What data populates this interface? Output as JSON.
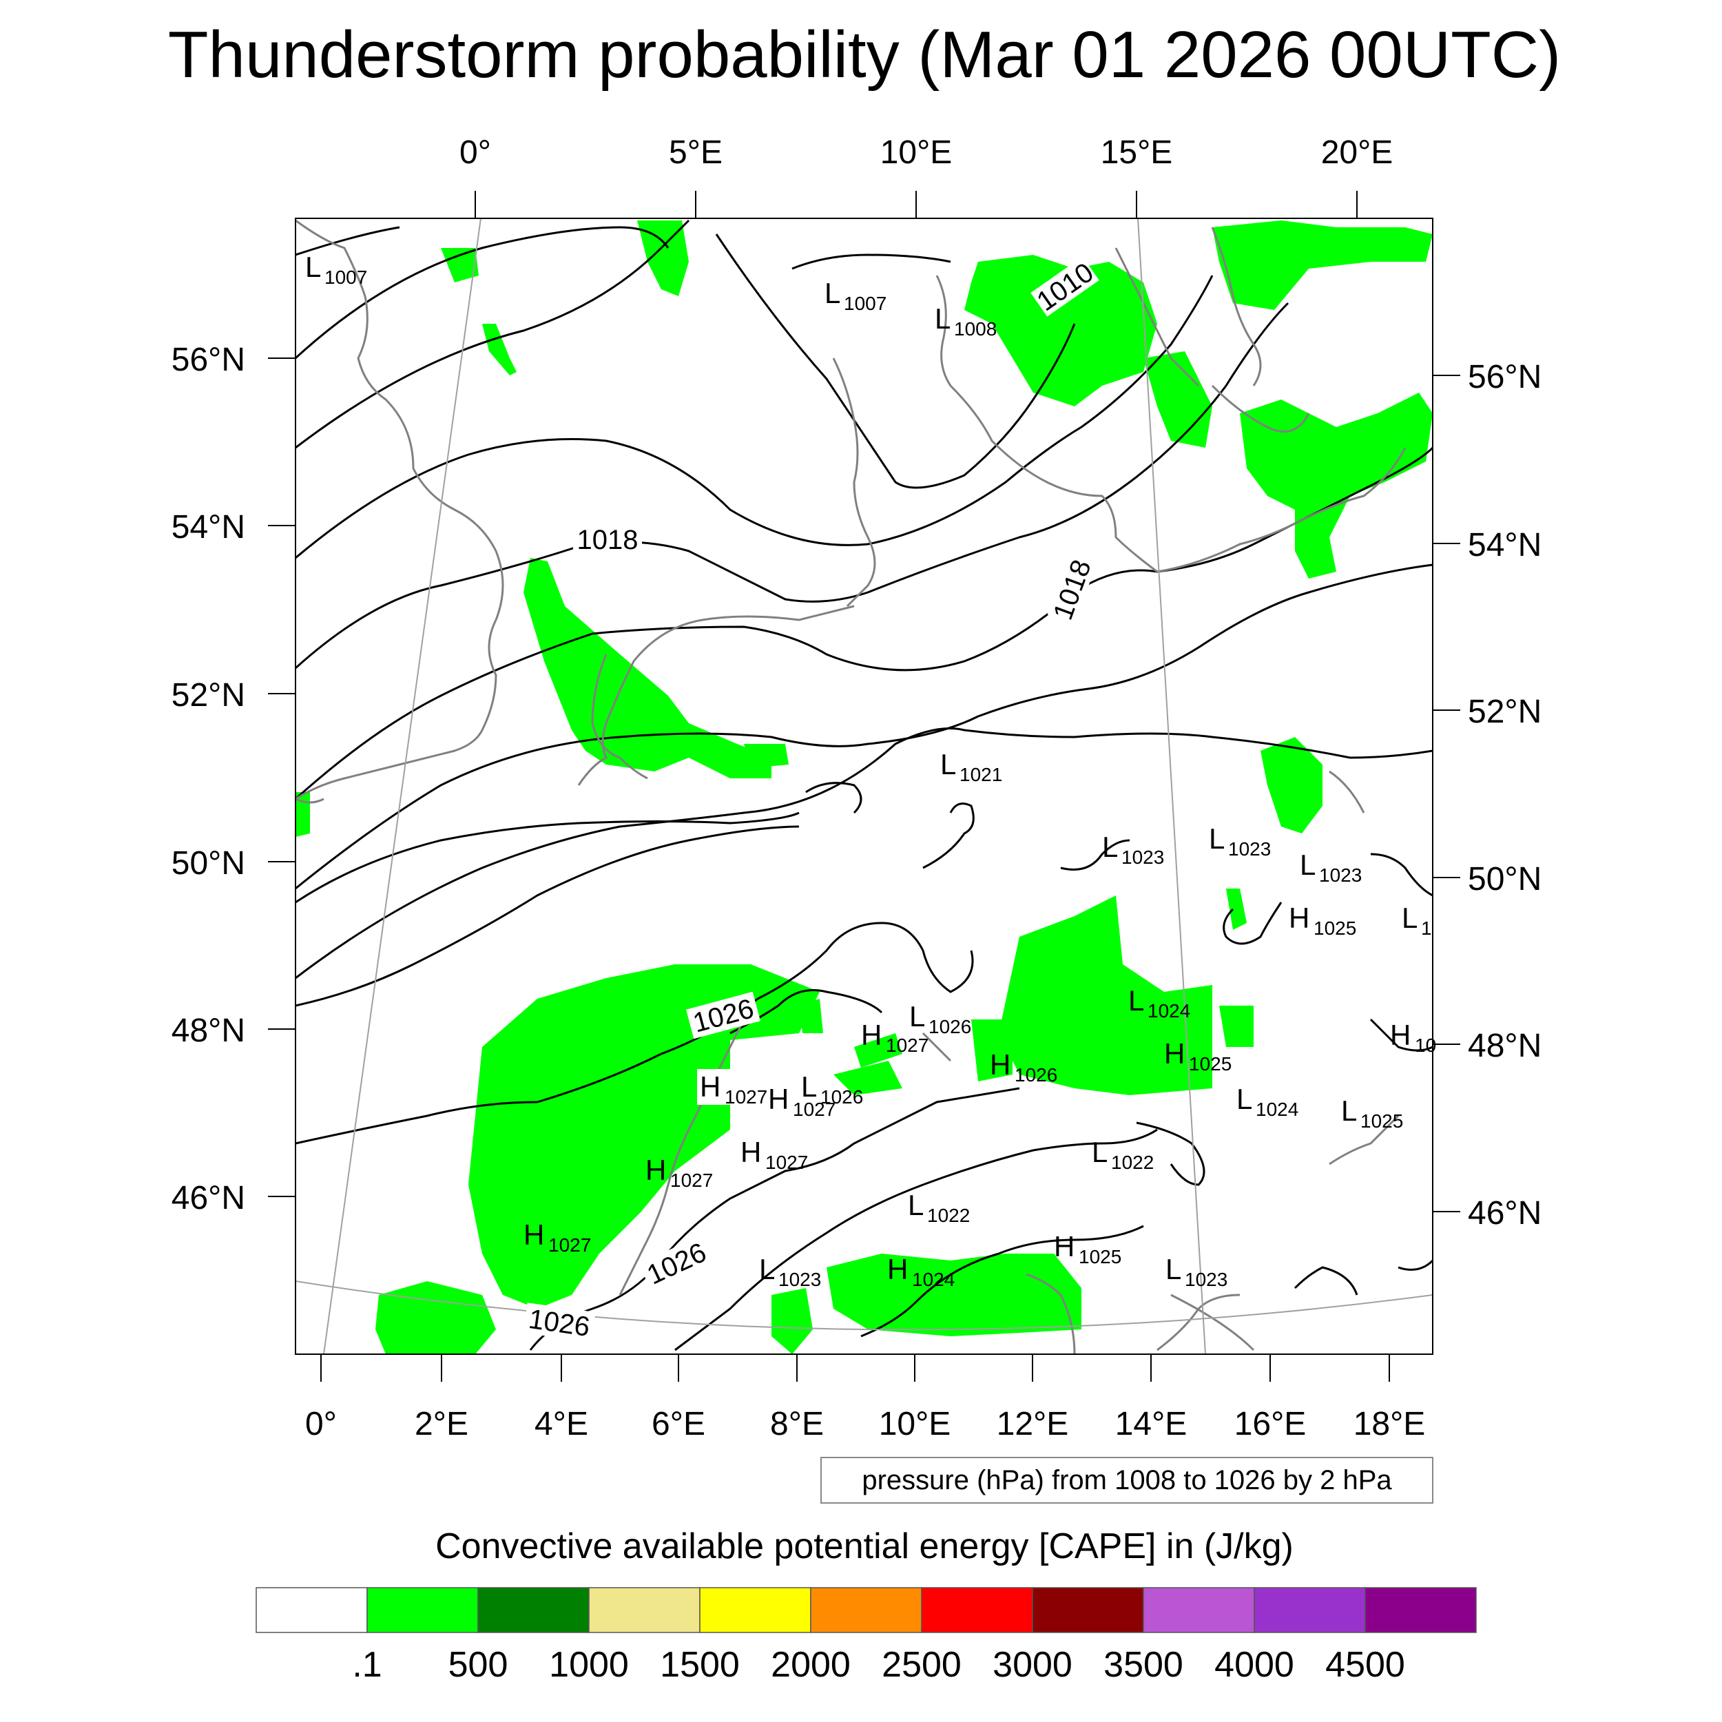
{
  "title": "Thunderstorm probability (Mar 01 2026 00UTC)",
  "top_lon_labels": [
    "0°",
    "5°E",
    "10°E",
    "15°E",
    "20°E"
  ],
  "bottom_lon_labels": [
    "0°",
    "2°E",
    "4°E",
    "6°E",
    "8°E",
    "10°E",
    "12°E",
    "14°E",
    "16°E",
    "18°E"
  ],
  "left_lat_labels": [
    "56°N",
    "54°N",
    "52°N",
    "50°N",
    "48°N",
    "46°N"
  ],
  "right_lat_labels": [
    "56°N",
    "54°N",
    "52°N",
    "50°N",
    "48°N",
    "46°N"
  ],
  "contour_labels": [
    "1010",
    "1018",
    "1018",
    "1026",
    "1026",
    "1026"
  ],
  "pressure_centers": [
    {
      "type": "L",
      "value": "1007"
    },
    {
      "type": "L",
      "value": "1007"
    },
    {
      "type": "L",
      "value": "1008"
    },
    {
      "type": "L",
      "value": "1021"
    },
    {
      "type": "L",
      "value": "1023"
    },
    {
      "type": "L",
      "value": "1023"
    },
    {
      "type": "L",
      "value": "1023"
    },
    {
      "type": "H",
      "value": "1025"
    },
    {
      "type": "L",
      "value": "1"
    },
    {
      "type": "L",
      "value": "1024"
    },
    {
      "type": "H",
      "value": "1025"
    },
    {
      "type": "H",
      "value": "10"
    },
    {
      "type": "L",
      "value": "1026"
    },
    {
      "type": "H",
      "value": "1027"
    },
    {
      "type": "H",
      "value": "1026"
    },
    {
      "type": "H",
      "value": "1027"
    },
    {
      "type": "H",
      "value": "1027"
    },
    {
      "type": "L",
      "value": "1026"
    },
    {
      "type": "L",
      "value": "1024"
    },
    {
      "type": "L",
      "value": "1025"
    },
    {
      "type": "L",
      "value": "1022"
    },
    {
      "type": "H",
      "value": "1027"
    },
    {
      "type": "H",
      "value": "1027"
    },
    {
      "type": "H",
      "value": "1027"
    },
    {
      "type": "L",
      "value": "1022"
    },
    {
      "type": "H",
      "value": "1025"
    },
    {
      "type": "L",
      "value": "1023"
    },
    {
      "type": "H",
      "value": "1024"
    },
    {
      "type": "L",
      "value": "1023"
    }
  ],
  "pressure_note": "pressure (hPa) from 1008 to 1026 by 2 hPa",
  "colorbar_title": "Convective available potential energy [CAPE] in (J/kg)",
  "colorbar_colors": [
    "#ffffff",
    "#00ff00",
    "#008000",
    "#f0e68c",
    "#ffff00",
    "#ff8c00",
    "#ff0000",
    "#8b0000",
    "#ba55d3",
    "#9932cc",
    "#8b008b"
  ],
  "colorbar_ticks": [
    ".1",
    "500",
    "1000",
    "1500",
    "2000",
    "2500",
    "3000",
    "3500",
    "4000",
    "4500"
  ]
}
